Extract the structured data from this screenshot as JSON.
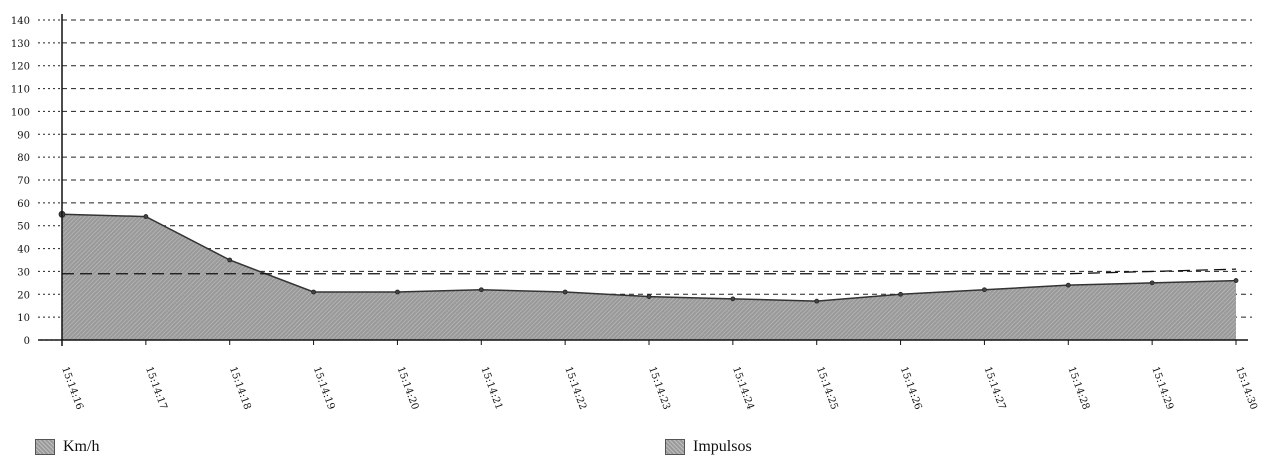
{
  "chart_data": {
    "type": "area",
    "title": "",
    "xlabel": "",
    "ylabel": "",
    "ylim": [
      0,
      140
    ],
    "yticks": [
      0,
      10,
      20,
      30,
      40,
      50,
      60,
      70,
      80,
      90,
      100,
      110,
      120,
      130,
      140
    ],
    "grid": true,
    "legend_position": "bottom",
    "categories": [
      "15:14:16",
      "15:14:17",
      "15:14:18",
      "15:14:19",
      "15:14:20",
      "15:14:21",
      "15:14:22",
      "15:14:23",
      "15:14:24",
      "15:14:25",
      "15:14:26",
      "15:14:27",
      "15:14:28",
      "15:14:29",
      "15:14:30"
    ],
    "series": [
      {
        "name": "Km/h",
        "values": [
          55,
          54,
          35,
          21,
          21,
          22,
          21,
          19,
          18,
          17,
          20,
          22,
          24,
          25,
          26
        ]
      },
      {
        "name": "Impulsos",
        "values": [
          29,
          29,
          29,
          29,
          29,
          29,
          29,
          29,
          29,
          29,
          29,
          29,
          29,
          30,
          31
        ]
      }
    ],
    "colors": {
      "area_fill": "#9a9a9a",
      "line": "#333333",
      "grid": "#222222",
      "axis": "#111111"
    }
  }
}
